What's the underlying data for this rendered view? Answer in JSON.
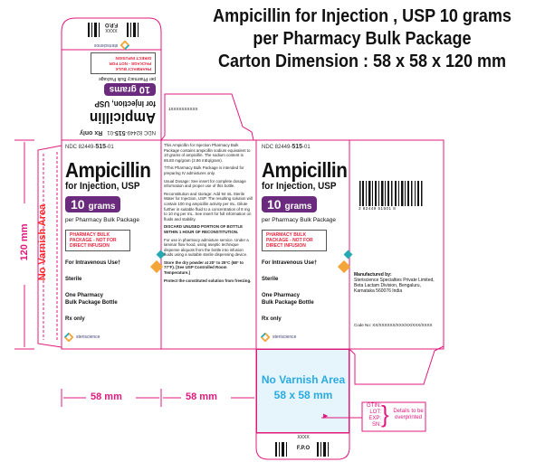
{
  "header": {
    "title_lines": [
      "Ampicillin for Injection , USP 10 grams",
      "per Pharmacy Bulk Package",
      "Carton Dimension : 58 x 58 x 120 mm"
    ]
  },
  "front": {
    "ndc_prefix": "NDC 82449-",
    "ndc_mid": "515",
    "ndc_suffix": "-01",
    "drug_name": "Ampicillin",
    "form": "for Injection, USP",
    "dose_number": "10",
    "dose_unit": "grams",
    "package": "per Pharmacy Bulk Package",
    "warning": "PHARMACY BULK PACKAGE - NOT FOR DIRECT INFUSION",
    "route": "For Intravenous Use†",
    "sterile": "Sterile",
    "contents_line1": "One Pharmacy",
    "contents_line2": "Bulk Package Bottle",
    "rx": "Rx only",
    "brand": "steriscience",
    "dose_color": "#6a2a7e"
  },
  "top_flap": {
    "fpo": "F.P.O",
    "code": "XXXX",
    "rx": "Rx only"
  },
  "side": {
    "flap_code": "1XXXXXXXXXX",
    "paragraphs": [
      "This Ampicillin for Injection Pharmacy Bulk Package contains ampicillin sodium equivalent to 10 grams of ampicillin. The sodium content is 65.83 mg/gram (2.86 mEq/gram).",
      "†This Pharmacy Bulk Package is intended for preparing IV admixtures only.",
      "Usual Dosage: See insert for complete dosage information and proper use of this bottle.",
      "Reconstitution and storage: Add 94 mL Sterile Water for Injection, USP. The resulting solution will contain 100 mg ampicillin activity per mL. Dilute further in suitable fluid to a concentration of 8 mg to 10 mg per mL. See insert for full information on fluids and stability.",
      "DISCARD UNUSED PORTION OF BOTTLE WITHIN 1 HOUR OF RECONSTITUTION.",
      "For use in pharmacy admixture service. Under a laminar flow hood, using aseptic technique dispense aliquots from the bottle into infusion fluids using a suitable sterile dispensing device.",
      "Store the dry powder at 20° to 25°C (68° to 77°F). [See USP Controlled Room Temperature.]",
      "Protect the constituted solution from freezing."
    ]
  },
  "back": {
    "barcode_digits": "3 82449 51501 8",
    "manufacturer_label": "Manufactured by:",
    "manufacturer_lines": [
      "Steriscience Specialties Private Limited,",
      "Beta Lactam Division, Bengaluru,",
      "Karnataka 560076 India"
    ],
    "code_no": "Code No: XX/XXXXXX/XXX/XX/XXX/XXXX"
  },
  "dimensions": {
    "height": "120 mm",
    "width1": "58 mm",
    "width2": "58 mm",
    "glue_flap": "No Varnish Area",
    "bottom_area": "No Varnish Area",
    "bottom_area_size": "58 x 58 mm",
    "bottom_fpo": "F.P.O",
    "bottom_code": "XXXX"
  },
  "overprint": {
    "fields": [
      "GTIN:",
      "LOT:",
      "EXP:",
      "SN:"
    ],
    "note": "Details to be overprinted"
  },
  "colors": {
    "dieline": "#e0197d",
    "no_varnish": "#ff2a2a",
    "blue_area": "#e6f4fb",
    "blue_text": "#29abe2"
  }
}
